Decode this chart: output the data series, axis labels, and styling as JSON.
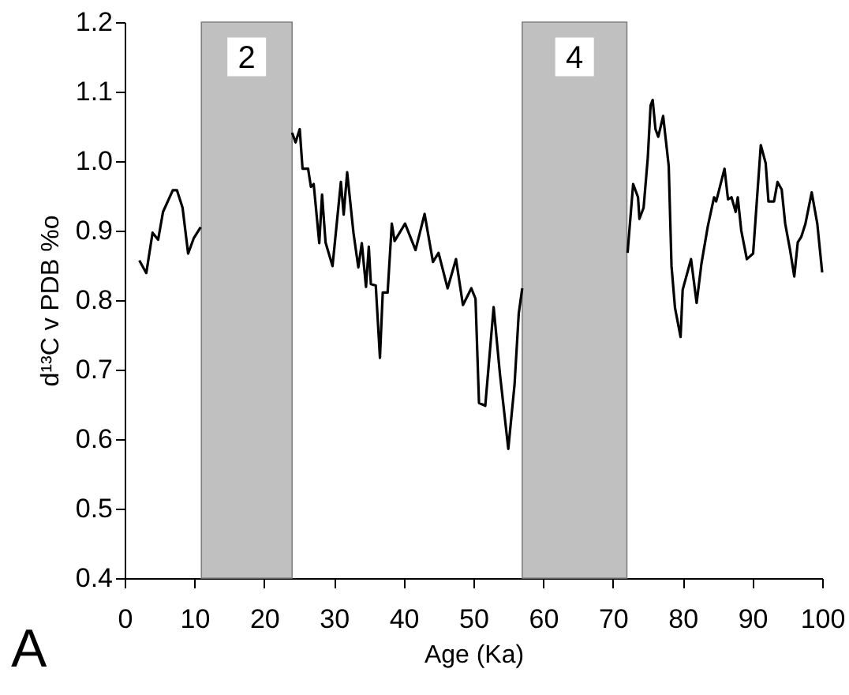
{
  "chart_data": {
    "type": "line",
    "xlabel": "Age (Ka)",
    "ylabel": "d¹³C v PDB %o",
    "annotations": [
      "A"
    ],
    "xlim": [
      0,
      100
    ],
    "xticks": [
      0,
      10,
      20,
      30,
      40,
      50,
      60,
      70,
      80,
      90,
      100
    ],
    "ylim": [
      0.4,
      1.2
    ],
    "yticks": [
      0.4,
      0.5,
      0.6,
      0.7,
      0.8,
      0.9,
      {
        "value": 1.0,
        "label": "1.0"
      },
      1.1,
      1.2
    ],
    "grid": false,
    "marker": "none",
    "line_style": "solid",
    "bands": [
      {
        "axis": "x",
        "from": 11,
        "to": 24,
        "label": "2",
        "color": "#c0c0c0"
      },
      {
        "axis": "x",
        "from": 57,
        "to": 72,
        "label": "4",
        "color": "#c0c0c0"
      }
    ],
    "series": [
      {
        "color": "#000000",
        "x": [
          2.1,
          3.1,
          4.0,
          4.8,
          5.5,
          6.9,
          7.5,
          8.3,
          9.1,
          9.9,
          10.9,
          17,
          24.0,
          24.5,
          25.1,
          25.5,
          26.3,
          26.7,
          27.1,
          27.9,
          28.3,
          28.8,
          29.8,
          31.0,
          31.4,
          31.9,
          32.8,
          33.5,
          34.0,
          34.6,
          35.0,
          35.3,
          36.0,
          36.6,
          37.0,
          37.7,
          38.3,
          38.7,
          40.2,
          41.7,
          43.0,
          44.2,
          45.0,
          46.3,
          47.5,
          48.5,
          49.7,
          50.3,
          50.8,
          51.7,
          52.9,
          53.8,
          55.0,
          55.9,
          56.5,
          57.0,
          64,
          72.1,
          72.9,
          73.6,
          73.8,
          74.4,
          75.0,
          75.4,
          75.7,
          76.1,
          76.5,
          77.2,
          78.0,
          78.4,
          78.9,
          79.7,
          80.0,
          81.2,
          82.0,
          82.7,
          83.6,
          84.5,
          84.8,
          86.0,
          86.5,
          87.0,
          87.6,
          87.9,
          88.4,
          89.2,
          90.1,
          91.2,
          91.9,
          92.3,
          93.1,
          93.6,
          94.2,
          94.7,
          95.4,
          96.0,
          96.5,
          97.0,
          97.6,
          98.5,
          99.3,
          100.0
        ],
        "values": [
          0.857,
          0.839,
          0.897,
          0.887,
          0.927,
          0.958,
          0.958,
          0.933,
          0.867,
          0.889,
          0.905,
          null,
          1.041,
          1.027,
          1.046,
          0.989,
          0.989,
          0.963,
          0.967,
          0.882,
          0.952,
          0.883,
          0.849,
          0.97,
          0.923,
          0.984,
          0.897,
          0.847,
          0.882,
          0.819,
          0.877,
          0.823,
          0.821,
          0.717,
          0.811,
          0.811,
          0.91,
          0.885,
          0.91,
          0.872,
          0.924,
          0.855,
          0.868,
          0.817,
          0.859,
          0.793,
          0.817,
          0.802,
          0.652,
          0.648,
          0.79,
          0.694,
          0.586,
          0.679,
          0.781,
          0.817,
          null,
          0.868,
          0.967,
          0.948,
          0.917,
          0.933,
          1.005,
          1.08,
          1.088,
          1.046,
          1.035,
          1.065,
          0.993,
          0.849,
          0.789,
          0.747,
          0.815,
          0.859,
          0.796,
          0.853,
          0.906,
          0.948,
          0.942,
          0.989,
          0.945,
          0.948,
          0.927,
          0.948,
          0.9,
          0.859,
          0.867,
          1.023,
          0.997,
          0.942,
          0.942,
          0.97,
          0.959,
          0.91,
          0.872,
          0.834,
          0.883,
          0.891,
          0.91,
          0.955,
          0.91,
          0.84
        ]
      }
    ]
  }
}
